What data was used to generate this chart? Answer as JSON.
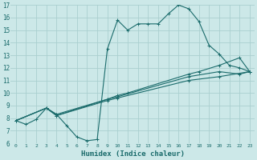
{
  "xlabel": "Humidex (Indice chaleur)",
  "bg_color": "#cce8e8",
  "grid_color": "#aacfcf",
  "line_color": "#1a6b6b",
  "xlim": [
    -0.5,
    23.5
  ],
  "ylim": [
    6,
    17
  ],
  "xticks": [
    0,
    1,
    2,
    3,
    4,
    5,
    6,
    7,
    8,
    9,
    10,
    11,
    12,
    13,
    14,
    15,
    16,
    17,
    18,
    19,
    20,
    21,
    22,
    23
  ],
  "yticks": [
    6,
    7,
    8,
    9,
    10,
    11,
    12,
    13,
    14,
    15,
    16,
    17
  ],
  "line1_x": [
    0,
    1,
    2,
    3,
    4,
    5,
    6,
    7,
    8,
    9,
    10,
    11,
    12,
    13,
    14,
    15,
    16,
    17,
    18,
    19,
    20,
    21,
    22,
    23
  ],
  "line1_y": [
    7.8,
    7.5,
    7.9,
    8.8,
    8.3,
    7.4,
    6.5,
    6.2,
    6.3,
    13.5,
    15.8,
    15.0,
    15.5,
    15.5,
    15.5,
    16.3,
    17.0,
    16.7,
    15.7,
    13.8,
    13.1,
    12.2,
    12.0,
    11.7
  ],
  "line2_x": [
    0,
    3,
    4,
    9,
    10,
    11,
    17,
    18,
    20,
    22,
    23
  ],
  "line2_y": [
    7.8,
    8.8,
    8.2,
    9.5,
    9.8,
    10.0,
    11.5,
    11.7,
    12.2,
    12.8,
    11.7
  ],
  "line3_x": [
    0,
    3,
    4,
    9,
    10,
    17,
    20,
    22,
    23
  ],
  "line3_y": [
    7.8,
    8.8,
    8.3,
    9.5,
    9.7,
    11.3,
    11.7,
    11.5,
    11.7
  ],
  "line4_x": [
    0,
    3,
    4,
    9,
    10,
    17,
    20,
    23
  ],
  "line4_y": [
    7.8,
    8.8,
    8.2,
    9.4,
    9.6,
    11.0,
    11.3,
    11.7
  ]
}
